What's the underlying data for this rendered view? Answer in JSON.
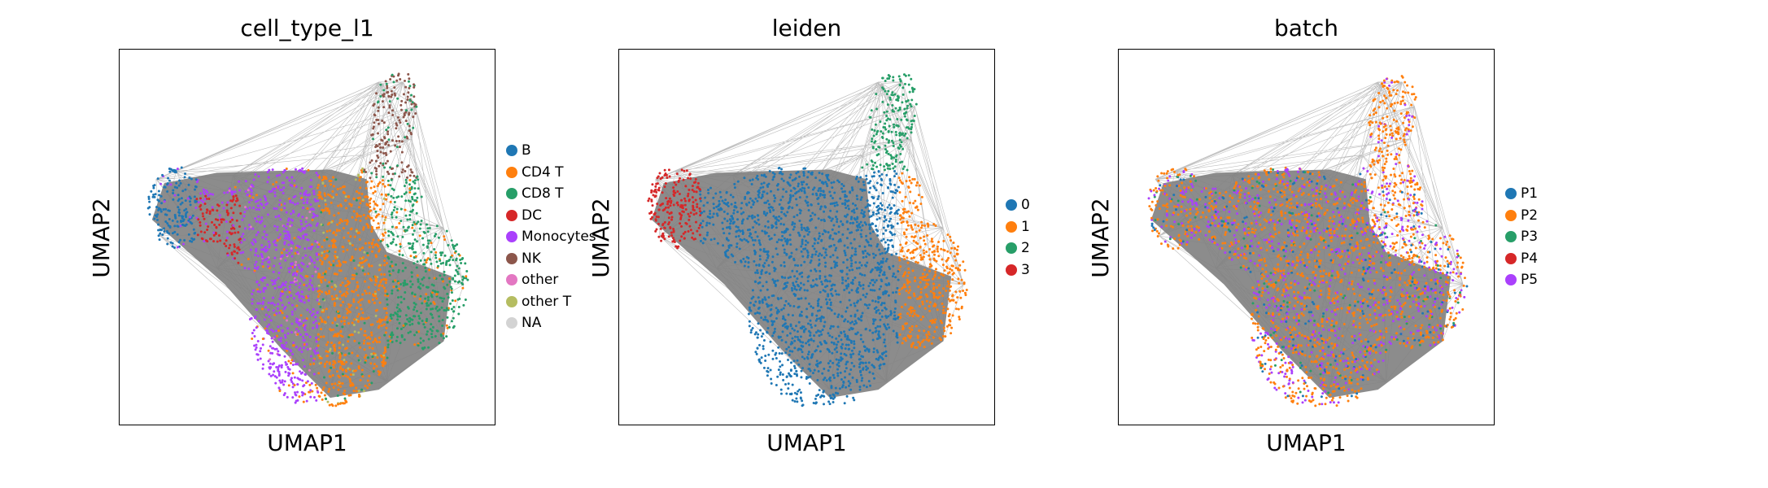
{
  "chart_data": [
    {
      "type": "scatter",
      "title": "cell_type_l1",
      "xlabel": "UMAP1",
      "ylabel": "UMAP2",
      "xticks": [],
      "yticks": [],
      "legend_position": "right",
      "series": [
        {
          "name": "B",
          "color": "#1f77b4"
        },
        {
          "name": "CD4 T",
          "color": "#ff7f0e"
        },
        {
          "name": "CD8 T",
          "color": "#279e68"
        },
        {
          "name": "DC",
          "color": "#d62728"
        },
        {
          "name": "Monocytes",
          "color": "#aa40fc"
        },
        {
          "name": "NK",
          "color": "#8c564b"
        },
        {
          "name": "other",
          "color": "#e377c2"
        },
        {
          "name": "other T",
          "color": "#b5bd61"
        },
        {
          "name": "NA",
          "color": "#d3d3d3"
        }
      ]
    },
    {
      "type": "scatter",
      "title": "leiden",
      "xlabel": "UMAP1",
      "ylabel": "UMAP2",
      "xticks": [],
      "yticks": [],
      "legend_position": "right",
      "series": [
        {
          "name": "0",
          "color": "#1f77b4"
        },
        {
          "name": "1",
          "color": "#ff7f0e"
        },
        {
          "name": "2",
          "color": "#279e68"
        },
        {
          "name": "3",
          "color": "#d62728"
        }
      ]
    },
    {
      "type": "scatter",
      "title": "batch",
      "xlabel": "UMAP1",
      "ylabel": "UMAP2",
      "xticks": [],
      "yticks": [],
      "legend_position": "right",
      "series": [
        {
          "name": "P1",
          "color": "#1f77b4"
        },
        {
          "name": "P2",
          "color": "#ff7f0e"
        },
        {
          "name": "P3",
          "color": "#279e68"
        },
        {
          "name": "P4",
          "color": "#d62728"
        },
        {
          "name": "P5",
          "color": "#aa40fc"
        }
      ]
    }
  ]
}
